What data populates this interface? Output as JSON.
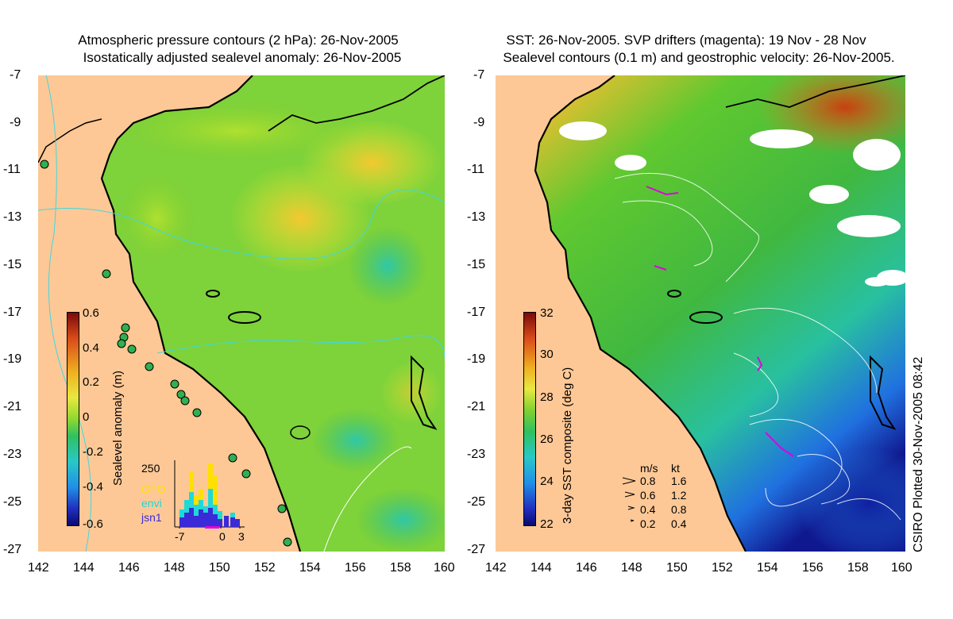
{
  "left_panel": {
    "title_line1": "Atmospheric pressure contours (2 hPa): 26-Nov-2005",
    "title_line2": "Isostatically adjusted sealevel anomaly: 26-Nov-2005",
    "colorbar": {
      "label": "Sealevel anomaly (m)",
      "ticks": [
        "0.6",
        "0.4",
        "0.2",
        "0",
        "-0.2",
        "-0.4",
        "-0.6"
      ]
    },
    "inset": {
      "ymax_label": "250",
      "legend": [
        {
          "name": "GFO",
          "color": "#ffe000"
        },
        {
          "name": "envi",
          "color": "#20d8d8"
        },
        {
          "name": "jsn1",
          "color": "#3a2ad8"
        }
      ],
      "xticks": [
        "-7",
        "0",
        "3"
      ]
    }
  },
  "right_panel": {
    "title_line1": "SST: 26-Nov-2005. SVP drifters (magenta): 19 Nov - 28 Nov",
    "title_line2": "Sealevel contours (0.1 m) and geostrophic velocity: 26-Nov-2005.",
    "colorbar": {
      "label": "3-day SST composite (deg C)",
      "ticks": [
        "32",
        "30",
        "28",
        "26",
        "24",
        "22"
      ]
    },
    "velocity_legend": {
      "header_ms": "m/s",
      "header_kt": "kt",
      "rows": [
        {
          "ms": "0.8",
          "kt": "1.6"
        },
        {
          "ms": "0.6",
          "kt": "1.2"
        },
        {
          "ms": "0.4",
          "kt": "0.8"
        },
        {
          "ms": "0.2",
          "kt": "0.4"
        }
      ]
    },
    "credit": "CSIRO Plotted 30-Nov-2005 08:42"
  },
  "axes": {
    "lat_ticks": [
      "-7",
      "-9",
      "-11",
      "-13",
      "-15",
      "-17",
      "-19",
      "-21",
      "-23",
      "-25",
      "-27"
    ],
    "lon_ticks": [
      "142",
      "144",
      "146",
      "148",
      "150",
      "152",
      "154",
      "156",
      "158",
      "160"
    ]
  },
  "colors": {
    "land": "#fdc896",
    "sea_green": "#6fcf2a",
    "coast": "#000000",
    "contour": "#40d8e0"
  }
}
